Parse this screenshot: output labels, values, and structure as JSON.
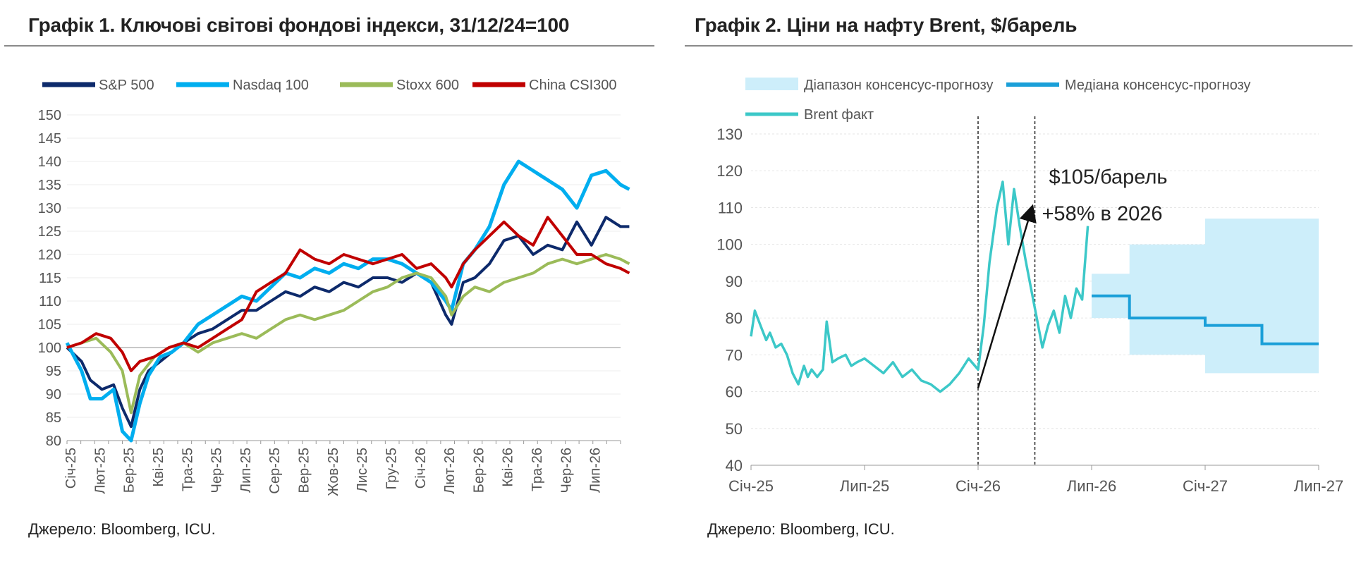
{
  "left": {
    "title": "Графік 1. Ключові світові фондові індекси, 31/12/24=100",
    "source": "Джерело: Bloomberg, ICU."
  },
  "right": {
    "title": "Графік 2. Ціни на нафту Brent, $/барель",
    "source": "Джерело: Bloomberg, ICU."
  },
  "chart_data": [
    {
      "type": "line",
      "title": "Графік 1. Ключові світові фондові індекси, 31/12/24=100",
      "categories": [
        "Січ-25",
        "Лют-25",
        "Бер-25",
        "Кві-25",
        "Тра-25",
        "Чер-25",
        "Лип-25",
        "Сер-25",
        "Вер-25",
        "Жов-25",
        "Лис-25",
        "Гру-25",
        "Січ-26",
        "Лют-26",
        "Бер-26",
        "Кві-26",
        "Тра-26",
        "Чер-26",
        "Лип-26"
      ],
      "ylim": [
        80,
        150
      ],
      "yticks": [
        80,
        85,
        90,
        95,
        100,
        105,
        110,
        115,
        120,
        125,
        130,
        135,
        140,
        145,
        150
      ],
      "grid": "horizontal",
      "baseline": 100,
      "legend_position": "top",
      "series": [
        {
          "name": "S&P 500",
          "color": "#0d2a6b",
          "x": [
            0,
            0.5,
            0.8,
            1.2,
            1.6,
            1.9,
            2.2,
            2.5,
            2.8,
            3.2,
            3.6,
            4.0,
            4.5,
            5.0,
            5.5,
            6.0,
            6.5,
            7.0,
            7.5,
            8.0,
            8.5,
            9.0,
            9.5,
            10.0,
            10.5,
            11.0,
            11.5,
            12.0,
            12.5,
            13.0,
            13.2,
            13.6,
            14.0,
            14.5,
            15.0,
            15.5,
            16.0,
            16.5,
            17.0,
            17.5,
            18.0,
            18.5,
            19.0,
            19.3
          ],
          "values": [
            100,
            97,
            93,
            91,
            92,
            87,
            83,
            91,
            95,
            97,
            99,
            101,
            103,
            104,
            106,
            108,
            108,
            110,
            112,
            111,
            113,
            112,
            114,
            113,
            115,
            115,
            114,
            116,
            114,
            107,
            105,
            114,
            115,
            118,
            123,
            124,
            120,
            122,
            121,
            127,
            122,
            128,
            126,
            126
          ]
        },
        {
          "name": "Nasdaq 100",
          "color": "#00aeef",
          "x": [
            0,
            0.5,
            0.8,
            1.2,
            1.6,
            1.9,
            2.2,
            2.5,
            2.8,
            3.2,
            3.6,
            4.0,
            4.5,
            5.0,
            5.5,
            6.0,
            6.5,
            7.0,
            7.5,
            8.0,
            8.5,
            9.0,
            9.5,
            10.0,
            10.5,
            11.0,
            11.5,
            12.0,
            12.5,
            13.0,
            13.2,
            13.6,
            14.0,
            14.5,
            15.0,
            15.5,
            16.0,
            16.5,
            17.0,
            17.5,
            18.0,
            18.5,
            19.0,
            19.3
          ],
          "values": [
            101,
            95,
            89,
            89,
            91,
            82,
            80,
            88,
            94,
            98,
            99,
            101,
            105,
            107,
            109,
            111,
            110,
            113,
            116,
            115,
            117,
            116,
            118,
            117,
            119,
            119,
            118,
            116,
            114,
            110,
            108,
            118,
            121,
            126,
            135,
            140,
            138,
            136,
            134,
            130,
            137,
            138,
            135,
            134
          ]
        },
        {
          "name": "Stoxx 600",
          "color": "#9bbb59",
          "x": [
            0,
            0.5,
            1.0,
            1.5,
            1.9,
            2.2,
            2.5,
            3.0,
            3.5,
            4.0,
            4.5,
            5.0,
            5.5,
            6.0,
            6.5,
            7.0,
            7.5,
            8.0,
            8.5,
            9.0,
            9.5,
            10.0,
            10.5,
            11.0,
            11.5,
            12.0,
            12.5,
            13.0,
            13.2,
            13.6,
            14.0,
            14.5,
            15.0,
            15.5,
            16.0,
            16.5,
            17.0,
            17.5,
            18.0,
            18.5,
            19.0,
            19.3
          ],
          "values": [
            100,
            101,
            102,
            99,
            95,
            86,
            94,
            98,
            100,
            101,
            99,
            101,
            102,
            103,
            102,
            104,
            106,
            107,
            106,
            107,
            108,
            110,
            112,
            113,
            115,
            116,
            115,
            111,
            107,
            111,
            113,
            112,
            114,
            115,
            116,
            118,
            119,
            118,
            119,
            120,
            119,
            118
          ]
        },
        {
          "name": "China CSI300",
          "color": "#c00000",
          "x": [
            0,
            0.5,
            1.0,
            1.5,
            1.9,
            2.2,
            2.5,
            3.0,
            3.5,
            4.0,
            4.5,
            5.0,
            5.5,
            6.0,
            6.5,
            7.0,
            7.5,
            8.0,
            8.5,
            9.0,
            9.5,
            10.0,
            10.5,
            11.0,
            11.5,
            12.0,
            12.5,
            13.0,
            13.2,
            13.6,
            14.0,
            14.5,
            15.0,
            15.5,
            16.0,
            16.5,
            17.0,
            17.5,
            18.0,
            18.5,
            19.0,
            19.3
          ],
          "values": [
            100,
            101,
            103,
            102,
            99,
            95,
            97,
            98,
            100,
            101,
            100,
            102,
            104,
            106,
            112,
            114,
            116,
            121,
            119,
            118,
            120,
            119,
            118,
            119,
            120,
            117,
            118,
            115,
            113,
            118,
            121,
            124,
            127,
            124,
            122,
            128,
            124,
            120,
            120,
            118,
            117,
            116
          ]
        }
      ]
    },
    {
      "type": "line",
      "title": "Графік 2. Ціни на нафту Brent, $/барель",
      "x_ticks": [
        "Січ-25",
        "Лип-25",
        "Січ-26",
        "Лип-26",
        "Січ-27",
        "Лип-27"
      ],
      "ylim": [
        40,
        130
      ],
      "yticks": [
        40,
        50,
        60,
        70,
        80,
        90,
        100,
        110,
        120,
        130
      ],
      "grid": "horizontal",
      "legend_position": "top",
      "vertical_markers": [
        "Січ-26",
        "Кві-26"
      ],
      "series": [
        {
          "name": "Діапазон консенсус-прогнозу",
          "color": "#cdeefa",
          "kind": "band",
          "x": [
            "Лип-26",
            "Вер-26",
            "Вер-26",
            "Січ-27",
            "Січ-27",
            "Тра-27",
            "Тра-27",
            "Лип-27"
          ],
          "low": [
            80,
            80,
            70,
            70,
            65,
            65,
            65,
            65
          ],
          "high": [
            92,
            92,
            100,
            100,
            107,
            107,
            107,
            107
          ]
        },
        {
          "name": "Медіана консенсус-прогнозу",
          "color": "#1a9fd8",
          "kind": "step",
          "x": [
            "Лип-26",
            "Вер-26",
            "Вер-26",
            "Січ-27",
            "Січ-27",
            "Кві-27",
            "Кві-27",
            "Лип-27"
          ],
          "values": [
            86,
            86,
            80,
            80,
            78,
            78,
            73,
            73
          ]
        },
        {
          "name": "Brent факт",
          "color": "#3cc8c8",
          "x": [
            0,
            0.2,
            0.5,
            0.8,
            1.0,
            1.3,
            1.6,
            1.9,
            2.2,
            2.5,
            2.8,
            3.0,
            3.2,
            3.5,
            3.8,
            4.0,
            4.3,
            4.6,
            5.0,
            5.3,
            5.6,
            6.0,
            6.5,
            7.0,
            7.5,
            8.0,
            8.5,
            9.0,
            9.5,
            10.0,
            10.5,
            11.0,
            11.5,
            12.0,
            12.3,
            12.6,
            13.0,
            13.3,
            13.6,
            13.9,
            14.2,
            14.5,
            14.8,
            15.1,
            15.4,
            15.7,
            16.0,
            16.3,
            16.6,
            16.9,
            17.2,
            17.5,
            17.8
          ],
          "values": [
            75,
            82,
            78,
            74,
            76,
            72,
            73,
            70,
            65,
            62,
            67,
            64,
            66,
            64,
            66,
            79,
            68,
            69,
            70,
            67,
            68,
            69,
            67,
            65,
            68,
            64,
            66,
            63,
            62,
            60,
            62,
            65,
            69,
            66,
            78,
            95,
            110,
            117,
            100,
            115,
            105,
            96,
            88,
            80,
            72,
            78,
            82,
            76,
            86,
            80,
            88,
            85,
            105
          ]
        }
      ],
      "annotations": [
        "$105/барель",
        "+58% в 2026"
      ]
    }
  ]
}
